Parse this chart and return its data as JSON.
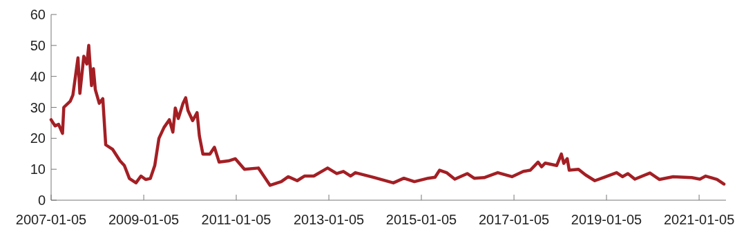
{
  "chart_data": {
    "type": "line",
    "x": [
      "2007-01-05",
      "2007-02-05",
      "2007-03-05",
      "2007-04-05",
      "2007-04-15",
      "2007-06-05",
      "2007-06-26",
      "2007-08-05",
      "2007-08-20",
      "2007-09-20",
      "2007-10-14",
      "2007-10-29",
      "2007-11-20",
      "2007-12-05",
      "2007-12-20",
      "2008-01-20",
      "2008-02-17",
      "2008-03-11",
      "2008-05-05",
      "2008-07-02",
      "2008-08-05",
      "2008-09-14",
      "2008-11-05",
      "2008-12-14",
      "2009-01-20",
      "2009-02-26",
      "2009-04-02",
      "2009-05-05",
      "2009-06-14",
      "2009-07-26",
      "2009-08-23",
      "2009-09-11",
      "2009-10-05",
      "2009-11-11",
      "2009-12-02",
      "2009-12-20",
      "2010-01-26",
      "2010-03-02",
      "2010-03-20",
      "2010-04-17",
      "2010-06-11",
      "2010-07-17",
      "2010-08-23",
      "2010-11-05",
      "2010-12-29",
      "2011-03-11",
      "2011-06-29",
      "2011-09-29",
      "2011-12-26",
      "2012-02-20",
      "2012-04-30",
      "2012-06-26",
      "2012-09-08",
      "2012-12-26",
      "2013-03-08",
      "2013-04-30",
      "2013-06-26",
      "2013-08-02",
      "2013-12-23",
      "2014-05-29",
      "2014-08-20",
      "2014-11-11",
      "2015-02-28",
      "2015-04-23",
      "2015-05-29",
      "2015-07-23",
      "2015-09-26",
      "2016-01-02",
      "2016-02-26",
      "2016-05-14",
      "2016-08-30",
      "2016-12-20",
      "2017-03-20",
      "2017-05-14",
      "2017-07-14",
      "2017-08-11",
      "2017-09-08",
      "2017-12-08",
      "2018-01-14",
      "2018-02-02",
      "2018-03-01",
      "2018-03-17",
      "2018-05-29",
      "2018-07-23",
      "2018-10-05",
      "2018-12-17",
      "2019-03-26",
      "2019-05-11",
      "2019-06-23",
      "2019-08-17",
      "2019-12-14",
      "2020-02-26",
      "2020-06-14",
      "2020-11-08",
      "2021-01-11",
      "2021-02-26",
      "2021-05-26",
      "2021-07-20"
    ],
    "series": [
      {
        "color": "#a31f24",
        "values": [
          26,
          24,
          24.5,
          21.6,
          30,
          32,
          34,
          46,
          34.5,
          46.5,
          44,
          50,
          37,
          42.5,
          35.7,
          31.3,
          32.8,
          17.9,
          16.4,
          12.7,
          11.2,
          7,
          5.6,
          7.8,
          6.7,
          7,
          11.2,
          20,
          23.5,
          26,
          22,
          29.8,
          26.4,
          31.3,
          33.1,
          29,
          25.7,
          28.3,
          20.8,
          14.9,
          14.9,
          17.1,
          12.3,
          12.7,
          13.4,
          10,
          10.4,
          4.8,
          6,
          7.6,
          6.3,
          7.8,
          7.8,
          10.4,
          8.6,
          9.3,
          7.8,
          8.9,
          7.4,
          5.6,
          7.1,
          6,
          7.1,
          7.4,
          9.7,
          8.9,
          6.8,
          8.6,
          7.1,
          7.3,
          8.9,
          7.6,
          9.3,
          9.7,
          12.3,
          10.8,
          12,
          11.2,
          14.9,
          11.9,
          13.4,
          9.7,
          10,
          8.2,
          6.3,
          7.4,
          8.9,
          7.6,
          8.6,
          6.8,
          8.8,
          6.7,
          7.6,
          7.3,
          6.8,
          7.8,
          6.7,
          5.2
        ]
      }
    ],
    "xlim": [
      "2007-01-05",
      "2021-08-05"
    ],
    "xticks": [
      "2007-01-05",
      "2009-01-05",
      "2011-01-05",
      "2013-01-05",
      "2015-01-05",
      "2017-01-05",
      "2019-01-05",
      "2021-01-05"
    ],
    "ylim": [
      0,
      60
    ],
    "yticks": [
      0,
      10,
      20,
      30,
      40,
      50,
      60
    ],
    "grid": false,
    "marker": "none",
    "line_style": "solid"
  }
}
